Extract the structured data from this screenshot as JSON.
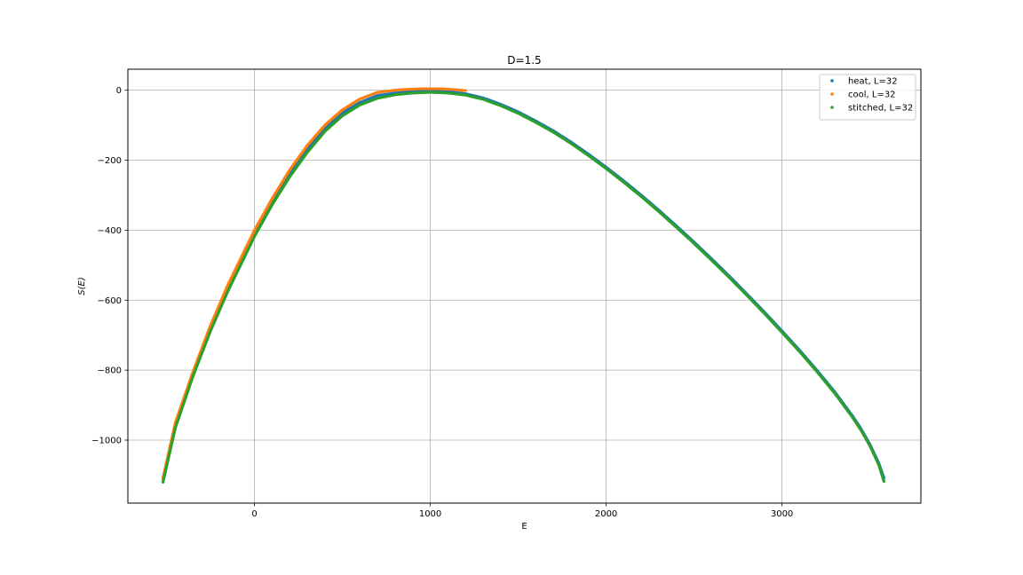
{
  "chart_data": {
    "type": "scatter",
    "title": "D=1.5",
    "xlabel": "E",
    "ylabel": "S(E)",
    "xlim": [
      -720,
      3790
    ],
    "ylim": [
      -1180,
      60
    ],
    "xticks": [
      0,
      1000,
      2000,
      3000
    ],
    "xtick_labels": [
      "0",
      "1000",
      "2000",
      "3000"
    ],
    "yticks": [
      0,
      -200,
      -400,
      -600,
      -800,
      -1000
    ],
    "ytick_labels": [
      "0",
      "−200",
      "−400",
      "−600",
      "−800",
      "−1000"
    ],
    "grid": true,
    "legend_position": "top-right",
    "series": [
      {
        "name": "heat, L=32",
        "color": "#1f77b4",
        "x": [
          -520,
          -450,
          -350,
          -250,
          -150,
          0,
          100,
          200,
          300,
          400,
          500,
          600,
          700,
          800,
          900,
          1000,
          1100,
          1200,
          1300,
          1400,
          1500,
          1600,
          1700,
          1800,
          1900,
          2000,
          2100,
          2200,
          2300,
          2400,
          2500,
          2600,
          2700,
          2800,
          2900,
          3000,
          3100,
          3200,
          3300,
          3400,
          3450,
          3500,
          3550,
          3580
        ],
        "y": [
          -1110,
          -955,
          -810,
          -680,
          -565,
          -410,
          -320,
          -240,
          -170,
          -110,
          -65,
          -35,
          -15,
          -8,
          -4,
          -2,
          -4,
          -10,
          -22,
          -40,
          -62,
          -88,
          -116,
          -148,
          -183,
          -220,
          -259,
          -300,
          -343,
          -388,
          -434,
          -482,
          -531,
          -582,
          -634,
          -688,
          -743,
          -801,
          -862,
          -930,
          -968,
          -1012,
          -1065,
          -1108
        ]
      },
      {
        "name": "cool, L=32",
        "color": "#ff7f0e",
        "x": [
          -520,
          -450,
          -350,
          -250,
          -150,
          0,
          100,
          200,
          300,
          400,
          500,
          600,
          700,
          800,
          850,
          900,
          950,
          1000,
          1050,
          1100,
          1150,
          1200
        ],
        "y": [
          -1108,
          -950,
          -805,
          -672,
          -555,
          -400,
          -310,
          -228,
          -158,
          -100,
          -56,
          -25,
          -6,
          0,
          2,
          3,
          4,
          4,
          4,
          3,
          1,
          -1
        ]
      },
      {
        "name": "stitched, L=32",
        "color": "#2ca02c",
        "x": [
          -520,
          -450,
          -350,
          -250,
          -150,
          0,
          100,
          200,
          300,
          400,
          500,
          600,
          700,
          800,
          900,
          1000,
          1100,
          1200,
          1300,
          1400,
          1500,
          1600,
          1700,
          1800,
          1900,
          2000,
          2100,
          2200,
          2300,
          2400,
          2500,
          2600,
          2700,
          2800,
          2900,
          3000,
          3100,
          3200,
          3300,
          3400,
          3450,
          3500,
          3550,
          3580
        ],
        "y": [
          -1120,
          -965,
          -818,
          -688,
          -573,
          -418,
          -328,
          -248,
          -178,
          -118,
          -73,
          -42,
          -23,
          -13,
          -8,
          -6,
          -8,
          -14,
          -26,
          -44,
          -66,
          -92,
          -120,
          -152,
          -187,
          -224,
          -263,
          -304,
          -347,
          -392,
          -438,
          -486,
          -535,
          -586,
          -638,
          -692,
          -747,
          -805,
          -866,
          -934,
          -972,
          -1016,
          -1070,
          -1118
        ]
      }
    ]
  }
}
